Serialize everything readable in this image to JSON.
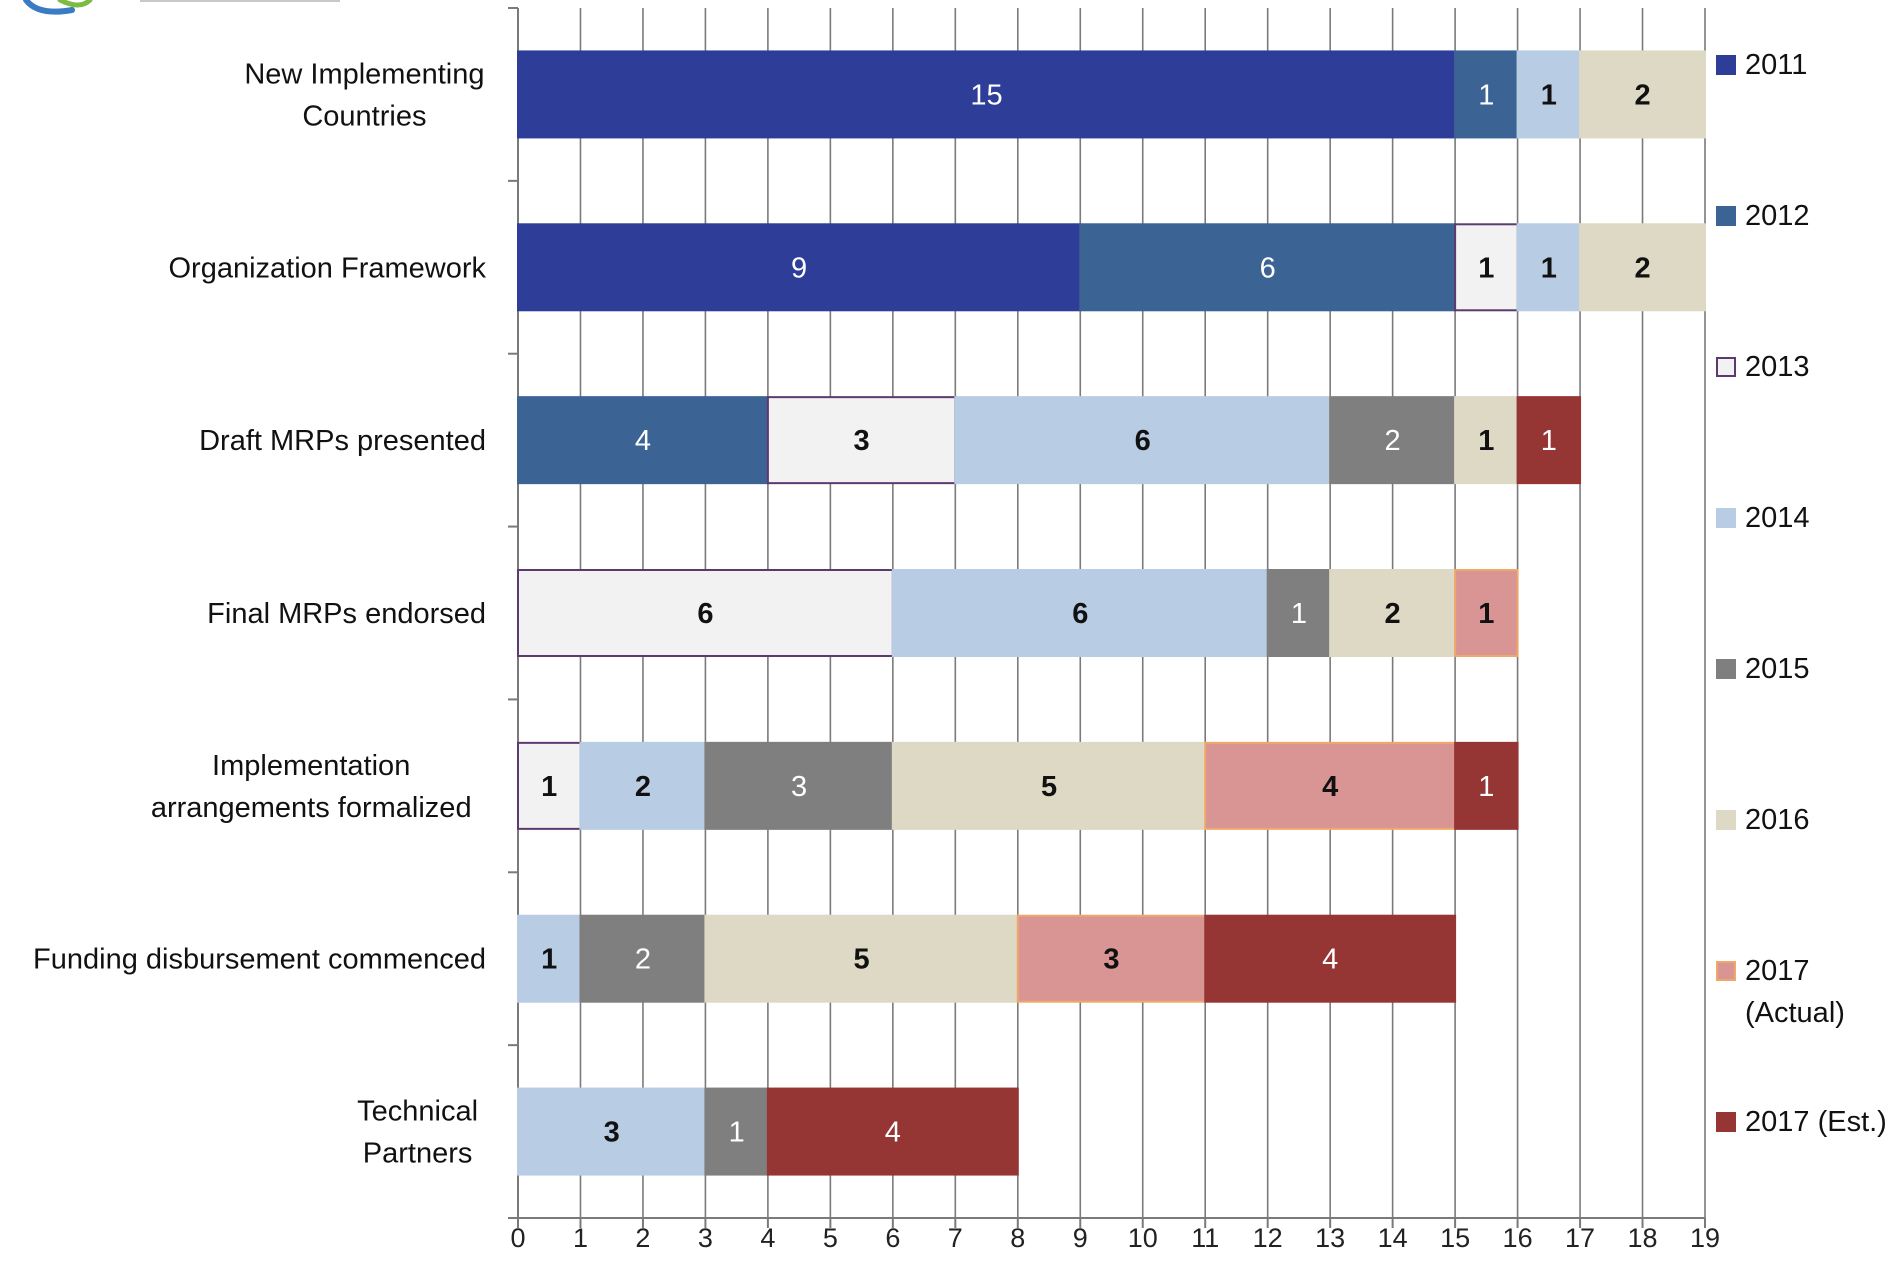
{
  "chart_data": {
    "type": "bar",
    "orientation": "horizontal",
    "stacked": true,
    "title": "",
    "xlabel": "",
    "ylabel": "",
    "xlim": [
      0,
      19
    ],
    "x_ticks": [
      "0",
      "1",
      "2",
      "3",
      "4",
      "5",
      "6",
      "7",
      "8",
      "9",
      "10",
      "11",
      "12",
      "13",
      "14",
      "15",
      "16",
      "17",
      "18",
      "19"
    ],
    "grid": "vertical gridlines on",
    "legend_position": "right",
    "categories": [
      [
        "New Implementing",
        "Countries"
      ],
      [
        "Organization Framework"
      ],
      [
        "Draft MRPs presented"
      ],
      [
        "Final MRPs endorsed"
      ],
      [
        "Implementation",
        "arrangements formalized"
      ],
      [
        "Funding disbursement commenced"
      ],
      [
        "Technical",
        "Partners"
      ]
    ],
    "series": [
      {
        "name": "2011",
        "legend_lines": [
          "2011"
        ],
        "color": "#2E3D98",
        "edge": "#2E3D98",
        "label_color": "#ffffff",
        "values": [
          15,
          9,
          0,
          0,
          0,
          0,
          0
        ]
      },
      {
        "name": "2012",
        "legend_lines": [
          "2012"
        ],
        "color": "#3B6494",
        "edge": "#3B6494",
        "label_color": "#ffffff",
        "values": [
          1,
          6,
          4,
          0,
          0,
          0,
          0
        ]
      },
      {
        "name": "2013",
        "legend_lines": [
          "2013"
        ],
        "color": "#F2F2F2",
        "edge": "#5C3A70",
        "label_color": "#111111",
        "values": [
          0,
          1,
          3,
          6,
          1,
          0,
          0
        ]
      },
      {
        "name": "2014",
        "legend_lines": [
          "2014"
        ],
        "color": "#B8CCE4",
        "edge": "#B8CCE4",
        "label_color": "#111111",
        "values": [
          1,
          1,
          6,
          6,
          2,
          1,
          3
        ]
      },
      {
        "name": "2015",
        "legend_lines": [
          "2015"
        ],
        "color": "#7F7F7F",
        "edge": "#7F7F7F",
        "label_color": "#ffffff",
        "values": [
          0,
          0,
          2,
          1,
          3,
          2,
          1
        ]
      },
      {
        "name": "2016",
        "legend_lines": [
          "2016"
        ],
        "color": "#DDD9C4",
        "edge": "#DDD9C4",
        "label_color": "#111111",
        "values": [
          2,
          2,
          1,
          2,
          5,
          5,
          0
        ]
      },
      {
        "name": "2017 (Actual)",
        "legend_lines": [
          "2017",
          "(Actual)"
        ],
        "color": "#D99594",
        "edge": "#F0A868",
        "label_color": "#111111",
        "values": [
          0,
          0,
          0,
          1,
          4,
          3,
          0
        ]
      },
      {
        "name": "2017 (Est.)",
        "legend_lines": [
          "2017 (Est.)"
        ],
        "color": "#963634",
        "edge": "#963634",
        "label_color": "#ffffff",
        "values": [
          0,
          0,
          1,
          0,
          1,
          4,
          4
        ]
      }
    ]
  }
}
